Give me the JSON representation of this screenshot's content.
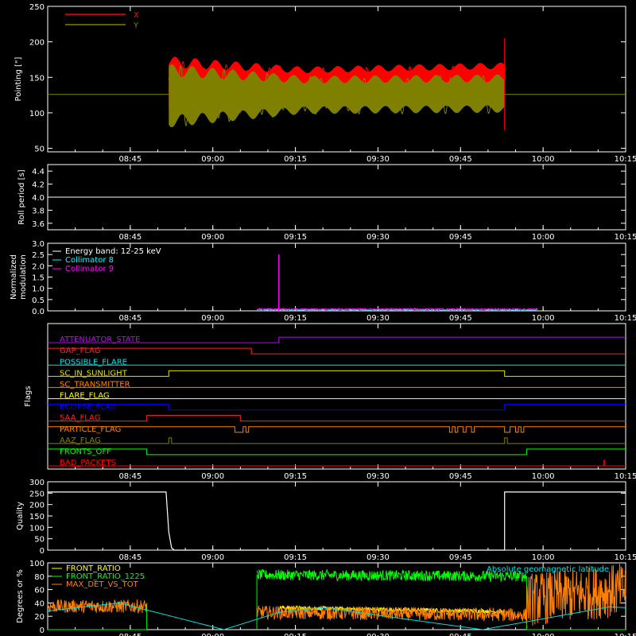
{
  "chart_data": [
    {
      "type": "line",
      "ylabel": "Pointing [\"]",
      "ylim": [
        45,
        250
      ],
      "yticks": [
        50,
        100,
        150,
        200,
        250
      ],
      "xlim": [
        "08:30",
        "10:15"
      ],
      "xticks": [
        "08:45",
        "09:00",
        "09:15",
        "09:30",
        "09:45",
        "10:00",
        "10:15"
      ],
      "grid": false,
      "legend_position": "top-left",
      "series": [
        {
          "name": "X",
          "color": "#ff0000",
          "start": "08:52",
          "end": "09:53",
          "center": 138,
          "amp_start": 42,
          "amp_end": 23,
          "min_start": 76,
          "max_end": 162
        },
        {
          "name": "Y",
          "color": "#808000",
          "start": "08:52",
          "end": "09:53",
          "center": 124,
          "amp_start": 45,
          "amp_end": 27,
          "min_start": 72,
          "max_end": 152
        }
      ],
      "baseline": 126,
      "spike": {
        "x": "09:53",
        "low": 75,
        "high": 205
      }
    },
    {
      "type": "line",
      "ylabel": "Roll period [s]",
      "ylim": [
        3.5,
        4.5
      ],
      "yticks": [
        3.6,
        3.8,
        4.0,
        4.2,
        4.4
      ],
      "xlim": [
        "08:30",
        "10:15"
      ],
      "xticks": [
        "08:45",
        "09:00",
        "09:15",
        "09:30",
        "09:45",
        "10:00",
        "10:15"
      ],
      "series": [
        {
          "name": "",
          "color": "#ffffff",
          "values": [
            4.0,
            4.0
          ]
        }
      ]
    },
    {
      "type": "line",
      "ylabel": "Normalized modulation",
      "ylim": [
        0,
        3
      ],
      "yticks": [
        0.0,
        0.5,
        1.0,
        1.5,
        2.0,
        2.5,
        3.0
      ],
      "xlim": [
        "08:30",
        "10:15"
      ],
      "xticks": [
        "08:45",
        "09:00",
        "09:15",
        "09:30",
        "09:45",
        "10:00",
        "10:15"
      ],
      "legend_title": "Energy band: 12-25 keV",
      "series": [
        {
          "name": "Collimator 8",
          "color": "#00ffff",
          "start": "09:08",
          "end": "09:59",
          "level": 0.05
        },
        {
          "name": "Collimator 9",
          "color": "#ff00ff",
          "start": "09:08",
          "end": "09:59",
          "level": 0.08,
          "spike": {
            "x": "09:12",
            "value": 2.5
          }
        }
      ]
    },
    {
      "type": "line",
      "ylabel": "Flags",
      "xlim": [
        "08:30",
        "10:15"
      ],
      "xticks": [
        "08:45",
        "09:00",
        "09:15",
        "09:30",
        "09:45",
        "10:00",
        "10:15"
      ],
      "flags": [
        {
          "name": "ATTENUATOR_STATE",
          "color": "#c000ff",
          "steps": [
            [
              "08:30",
              0
            ],
            [
              "09:12",
              1
            ],
            [
              "10:15",
              1
            ]
          ]
        },
        {
          "name": "GAP_FLAG",
          "color": "#ff2020",
          "steps": [
            [
              "08:30",
              1
            ],
            [
              "09:07",
              0
            ],
            [
              "10:15",
              0
            ]
          ]
        },
        {
          "name": "POSSIBLE_FLARE",
          "color": "#00e0e0",
          "steps": [
            [
              "08:30",
              0
            ],
            [
              "10:15",
              0
            ]
          ]
        },
        {
          "name": "SC_IN_SUNLIGHT",
          "color": "#e0e000",
          "steps": [
            [
              "08:30",
              0
            ],
            [
              "08:52",
              1
            ],
            [
              "09:53",
              0
            ],
            [
              "10:15",
              0
            ]
          ]
        },
        {
          "name": "SC_TRANSMITTER",
          "color": "#ff8000",
          "steps": [
            [
              "08:30",
              0
            ],
            [
              "10:15",
              0
            ]
          ]
        },
        {
          "name": "FLARE_FLAG",
          "color": "#ffff00",
          "steps": [
            [
              "08:30",
              0
            ],
            [
              "10:15",
              0
            ]
          ]
        },
        {
          "name": "ECLIPSE_FLAG",
          "color": "#0000ff",
          "steps": [
            [
              "08:30",
              1
            ],
            [
              "08:52",
              0
            ],
            [
              "09:53",
              1
            ],
            [
              "10:15",
              1
            ]
          ]
        },
        {
          "name": "SAA_FLAG",
          "color": "#ff2020",
          "steps": [
            [
              "08:30",
              0
            ],
            [
              "08:48",
              1
            ],
            [
              "09:05",
              0
            ],
            [
              "10:15",
              0
            ]
          ]
        },
        {
          "name": "PARTICLE_FLAG",
          "color": "#ff8000",
          "steps": [
            [
              "08:30",
              1
            ],
            [
              "09:04",
              0
            ],
            [
              "09:05.5",
              1
            ],
            [
              "09:06",
              0
            ],
            [
              "09:06.5",
              1
            ],
            [
              "09:43",
              0
            ],
            [
              "09:43.5",
              1
            ],
            [
              "09:44",
              0
            ],
            [
              "09:44.5",
              1
            ],
            [
              "09:45.5",
              0
            ],
            [
              "09:46",
              1
            ],
            [
              "09:47",
              0
            ],
            [
              "09:47.5",
              1
            ],
            [
              "09:53",
              0
            ],
            [
              "09:54",
              1
            ],
            [
              "09:55",
              0
            ],
            [
              "09:55.5",
              1
            ],
            [
              "09:56",
              0
            ],
            [
              "09:56.5",
              1
            ],
            [
              "10:15",
              1
            ]
          ]
        },
        {
          "name": "AAZ_FLAG",
          "color": "#808000",
          "steps": [
            [
              "08:30",
              0
            ],
            [
              "08:52",
              1
            ],
            [
              "08:52.5",
              0
            ],
            [
              "09:53",
              1
            ],
            [
              "09:53.5",
              0
            ],
            [
              "10:15",
              0
            ]
          ]
        },
        {
          "name": "FRONTS_OFF",
          "color": "#00ff00",
          "steps": [
            [
              "08:30",
              1
            ],
            [
              "08:48",
              0
            ],
            [
              "09:57",
              1
            ],
            [
              "10:15",
              1
            ]
          ]
        },
        {
          "name": "BAD_PACKETS",
          "color": "#ff0000",
          "steps": [
            [
              "08:30",
              0
            ],
            [
              "10:11",
              1
            ],
            [
              "10:11.2",
              0
            ],
            [
              "10:15",
              0
            ]
          ]
        }
      ]
    },
    {
      "type": "line",
      "ylabel": "Quality",
      "ylim": [
        0,
        300
      ],
      "yticks": [
        0,
        50,
        100,
        150,
        200,
        250,
        300
      ],
      "xlim": [
        "08:30",
        "10:15"
      ],
      "xticks": [
        "08:45",
        "09:00",
        "09:15",
        "09:30",
        "09:45",
        "10:00",
        "10:15"
      ],
      "series": [
        {
          "name": "",
          "color": "#ffffff",
          "points": [
            [
              "08:30",
              255
            ],
            [
              "08:51.5",
              255
            ],
            [
              "08:52",
              80
            ],
            [
              "08:52.5",
              10
            ],
            [
              "08:53",
              0
            ],
            [
              "09:53",
              0
            ],
            [
              "09:53",
              255
            ],
            [
              "10:15",
              255
            ]
          ]
        }
      ]
    },
    {
      "type": "line",
      "ylabel": "Degrees or %",
      "ylim": [
        0,
        100
      ],
      "yticks": [
        0,
        20,
        40,
        60,
        80,
        100
      ],
      "xlim": [
        "08:30",
        "10:15"
      ],
      "xticks": [
        "08:45",
        "09:00",
        "09:15",
        "09:30",
        "09:45",
        "10:00",
        "10:15"
      ],
      "series": [
        {
          "name": "FRONT_RATIO",
          "color": "#ffff00",
          "segments": [
            {
              "start": "09:12",
              "end": "09:53",
              "from": 33,
              "to": 27
            }
          ]
        },
        {
          "name": "FRONT_RATIO_1225",
          "color": "#00ff00",
          "segments": [
            {
              "start": "08:30",
              "end": "08:48",
              "from": 0,
              "to": 0
            },
            {
              "start": "09:08",
              "end": "09:57",
              "from": 82,
              "to": 80
            },
            {
              "start": "09:57",
              "end": "10:15",
              "from": 0,
              "to": 0
            }
          ]
        },
        {
          "name": "MAX_DET_VS_TOT",
          "color": "#ff8000",
          "segments": [
            {
              "start": "08:30",
              "end": "08:48",
              "from": 35,
              "to": 35
            },
            {
              "start": "09:08",
              "end": "09:57",
              "from": 26,
              "to": 22
            },
            {
              "start": "09:57",
              "end": "10:15",
              "from": 45,
              "to": 60
            }
          ]
        },
        {
          "name": "Absolute geomagnetic latitude",
          "color": "#00e0e0",
          "points": [
            [
              "08:30",
              28
            ],
            [
              "08:43",
              40
            ],
            [
              "09:02",
              0
            ],
            [
              "09:12",
              26
            ],
            [
              "09:20",
              33
            ],
            [
              "09:49",
              0
            ],
            [
              "10:12",
              34
            ],
            [
              "10:15",
              33
            ]
          ]
        }
      ]
    }
  ]
}
